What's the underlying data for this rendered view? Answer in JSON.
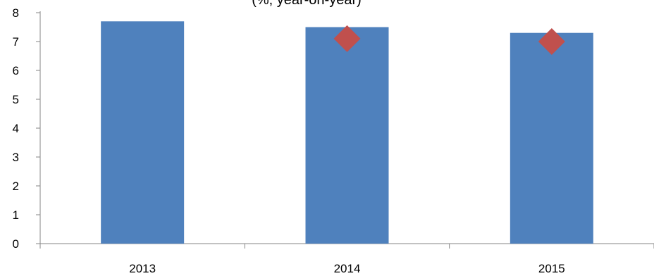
{
  "chart_data": {
    "type": "bar",
    "title": "(%, year-on-year)",
    "xlabel": "",
    "ylabel": "",
    "categories": [
      "2013",
      "2014",
      "2015"
    ],
    "ylim": [
      0,
      8
    ],
    "yticks": [
      "0",
      "1",
      "2",
      "3",
      "4",
      "5",
      "6",
      "7",
      "8"
    ],
    "grid": false,
    "legend": "none",
    "series": [
      {
        "values": [
          7.7,
          7.5,
          7.3
        ],
        "kind": "bar",
        "color": "#4F81BD"
      },
      {
        "values": [
          null,
          7.1,
          7.0
        ],
        "kind": "marker",
        "marker": "diamond",
        "color": "#C0504D"
      }
    ]
  }
}
